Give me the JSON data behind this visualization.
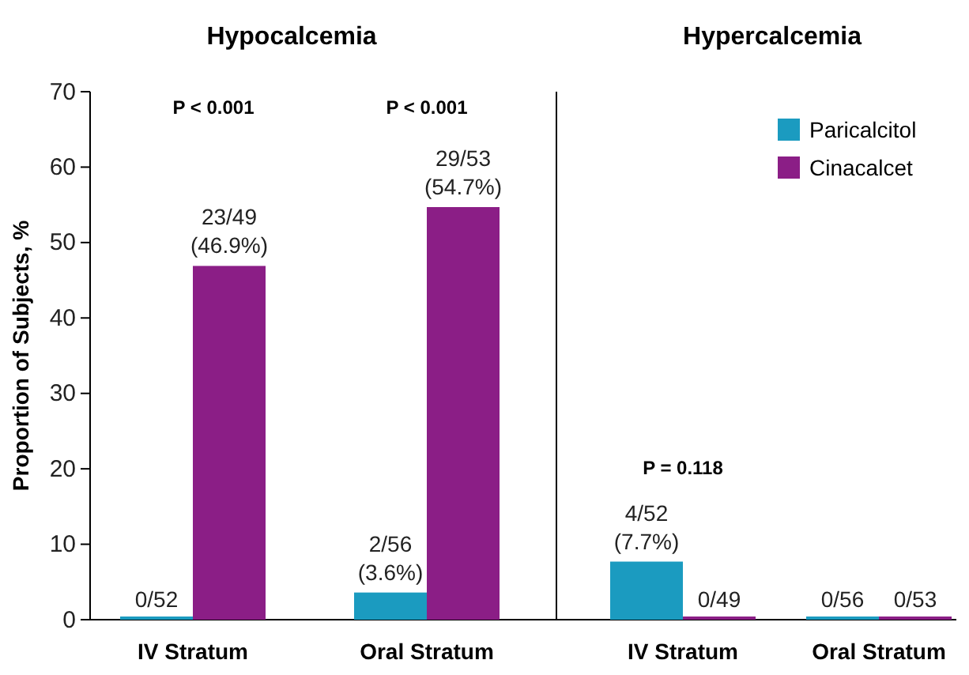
{
  "chart_data": [
    {
      "type": "bar",
      "title": "Hypocalcemia",
      "ylabel": "Proportion of Subjects, %",
      "categories": [
        "IV Stratum",
        "Oral Stratum"
      ],
      "series": [
        {
          "color": "#1b9bc0",
          "values": [
            0,
            3.6
          ],
          "value_labels": [
            "0/52",
            "2/56 (3.6%)"
          ]
        },
        {
          "color": "#8b1e86",
          "values": [
            46.9,
            54.7
          ],
          "value_labels": [
            "23/49 (46.9%)",
            "29/53 (54.7%)"
          ]
        }
      ],
      "ylim": [
        0,
        70
      ],
      "yticks": [
        0,
        10,
        20,
        30,
        40,
        50,
        60,
        70
      ],
      "grid": false,
      "annotations": [
        "P < 0.001",
        "P < 0.001"
      ]
    },
    {
      "type": "bar",
      "title": "Hypercalcemia",
      "categories": [
        "IV Stratum",
        "Oral Stratum"
      ],
      "series": [
        {
          "name": "Paricalcitol",
          "color": "#1b9bc0",
          "values": [
            7.7,
            0
          ],
          "value_labels": [
            "4/52 (7.7%)",
            "0/56"
          ]
        },
        {
          "name": "Cinacalcet",
          "color": "#8b1e86",
          "values": [
            0,
            0
          ],
          "value_labels": [
            "0/49",
            "0/53"
          ]
        }
      ],
      "ylim": [
        0,
        70
      ],
      "tick_labels": "x",
      "grid": false,
      "legend": "top right",
      "annotations": [
        "P = 0.118"
      ]
    }
  ]
}
